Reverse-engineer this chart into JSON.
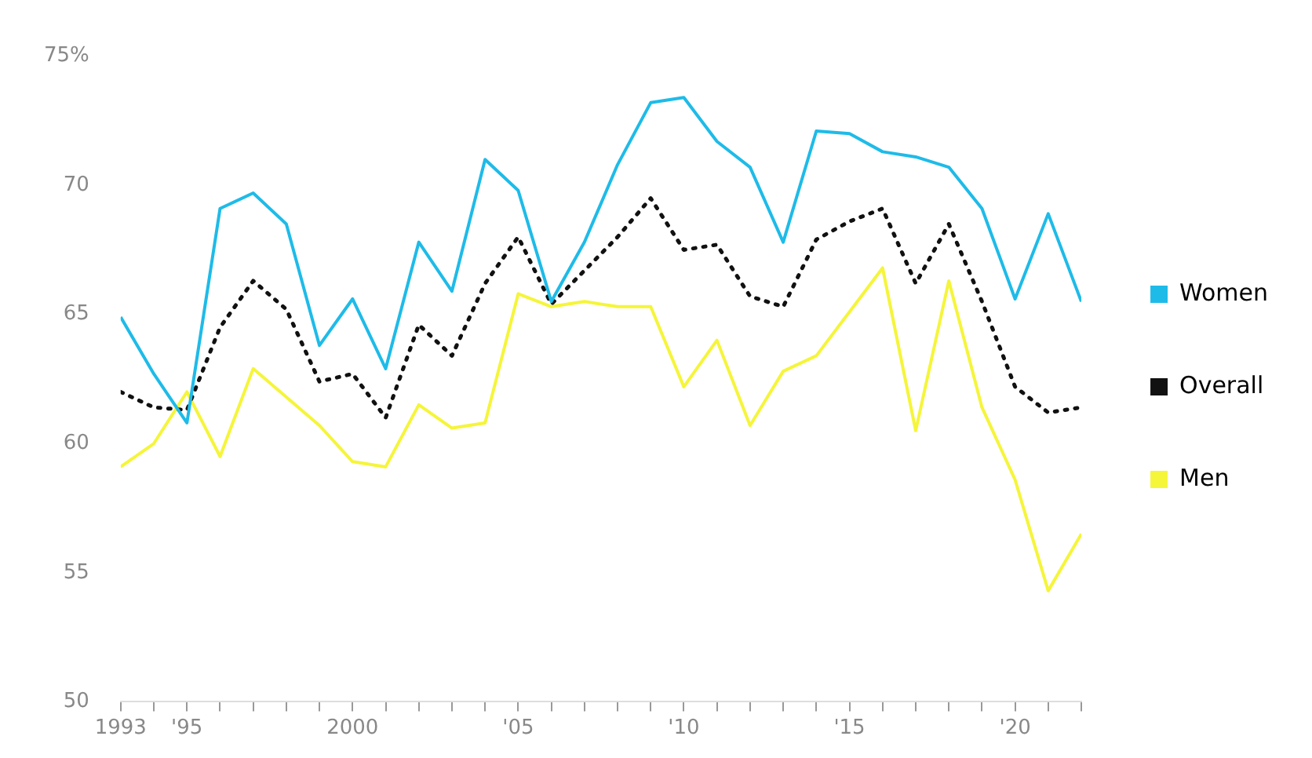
{
  "chart_data": {
    "type": "line",
    "x": [
      1993,
      1994,
      1995,
      1996,
      1997,
      1998,
      1999,
      2000,
      2001,
      2002,
      2003,
      2004,
      2005,
      2006,
      2007,
      2008,
      2009,
      2010,
      2011,
      2012,
      2013,
      2014,
      2015,
      2016,
      2017,
      2018,
      2019,
      2020,
      2021,
      2022
    ],
    "series": [
      {
        "name": "Women",
        "color": "#1ebbe8",
        "line_style": "solid",
        "values": [
          64.9,
          62.7,
          60.8,
          69.1,
          69.7,
          68.5,
          63.8,
          65.6,
          62.9,
          67.8,
          65.9,
          71.0,
          69.8,
          65.5,
          67.8,
          70.8,
          73.2,
          73.4,
          71.7,
          70.7,
          67.8,
          72.1,
          72.0,
          71.3,
          71.1,
          70.7,
          69.1,
          65.6,
          68.9,
          65.5
        ]
      },
      {
        "name": "Overall",
        "color": "#111111",
        "line_style": "dotted",
        "values": [
          62.0,
          61.4,
          61.3,
          64.5,
          66.3,
          65.2,
          62.4,
          62.7,
          61.0,
          64.6,
          63.4,
          66.2,
          68.0,
          65.4,
          66.7,
          68.0,
          69.5,
          67.5,
          67.7,
          65.7,
          65.3,
          67.9,
          68.6,
          69.1,
          66.2,
          68.5,
          65.5,
          62.2,
          61.2,
          61.4
        ]
      },
      {
        "name": "Men",
        "color": "#f5f53a",
        "line_style": "solid",
        "values": [
          59.1,
          60.0,
          62.0,
          59.5,
          62.9,
          61.8,
          60.7,
          59.3,
          59.1,
          61.5,
          60.6,
          60.8,
          65.8,
          65.3,
          65.5,
          65.3,
          65.3,
          62.2,
          64.0,
          60.7,
          62.8,
          63.4,
          65.1,
          66.8,
          60.5,
          66.3,
          61.4,
          58.6,
          54.3,
          56.5
        ]
      }
    ],
    "xticks": [
      {
        "value": 1993,
        "label": "1993"
      },
      {
        "value": 1994,
        "label": null
      },
      {
        "value": 1995,
        "label": "'95"
      },
      {
        "value": 1996,
        "label": null
      },
      {
        "value": 1997,
        "label": null
      },
      {
        "value": 1998,
        "label": null
      },
      {
        "value": 1999,
        "label": null
      },
      {
        "value": 2000,
        "label": "2000"
      },
      {
        "value": 2001,
        "label": null
      },
      {
        "value": 2002,
        "label": null
      },
      {
        "value": 2003,
        "label": null
      },
      {
        "value": 2004,
        "label": null
      },
      {
        "value": 2005,
        "label": "'05"
      },
      {
        "value": 2006,
        "label": null
      },
      {
        "value": 2007,
        "label": null
      },
      {
        "value": 2008,
        "label": null
      },
      {
        "value": 2009,
        "label": null
      },
      {
        "value": 2010,
        "label": "'10"
      },
      {
        "value": 2011,
        "label": null
      },
      {
        "value": 2012,
        "label": null
      },
      {
        "value": 2013,
        "label": null
      },
      {
        "value": 2014,
        "label": null
      },
      {
        "value": 2015,
        "label": "'15"
      },
      {
        "value": 2016,
        "label": null
      },
      {
        "value": 2017,
        "label": null
      },
      {
        "value": 2018,
        "label": null
      },
      {
        "value": 2019,
        "label": null
      },
      {
        "value": 2020,
        "label": "'20"
      },
      {
        "value": 2021,
        "label": null
      },
      {
        "value": 2022,
        "label": null
      }
    ],
    "xlim": [
      1993,
      2022
    ],
    "ylim": [
      50,
      75
    ],
    "yticks": [
      50,
      55,
      60,
      65,
      70,
      {
        "value": 75,
        "label": "75%"
      }
    ],
    "grid": false,
    "legend": "right",
    "marker": "none"
  }
}
